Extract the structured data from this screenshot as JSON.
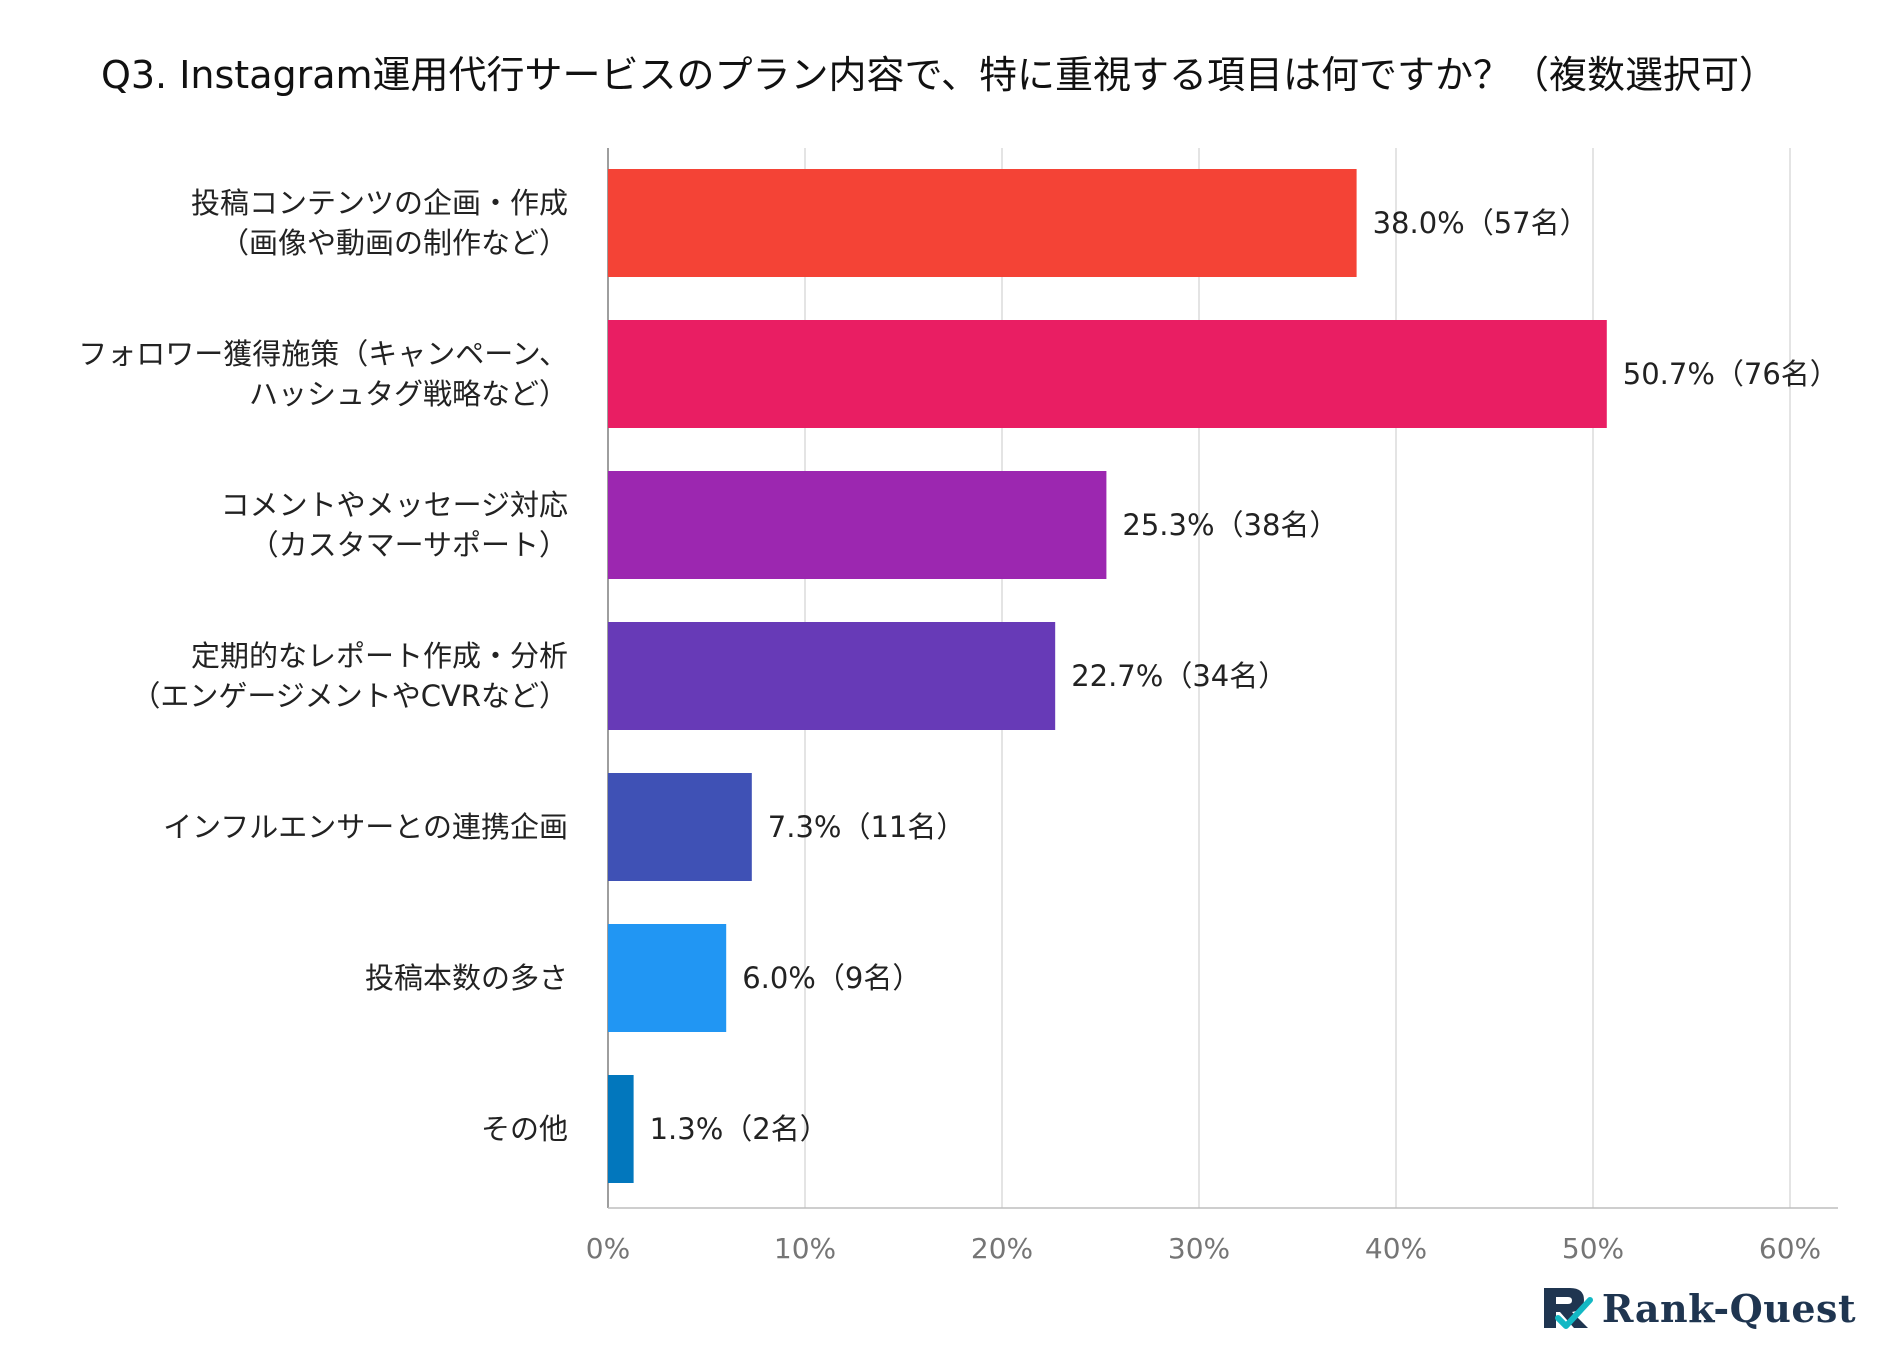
{
  "chart_data": {
    "type": "bar",
    "orientation": "horizontal",
    "title": "Q3. Instagram運用代行サービスのプラン内容で、特に重視する項目は何ですか？（複数選択可）",
    "categories": [
      [
        "投稿コンテンツの企画・作成",
        "（画像や動画の制作など）"
      ],
      [
        "フォロワー獲得施策（キャンペーン、",
        "ハッシュタグ戦略など）"
      ],
      [
        "コメントやメッセージ対応",
        "（カスタマーサポート）"
      ],
      [
        "定期的なレポート作成・分析",
        "（エンゲージメントやCVRなど）"
      ],
      [
        "インフルエンサーとの連携企画"
      ],
      [
        "投稿本数の多さ"
      ],
      [
        "その他"
      ]
    ],
    "values": [
      38.0,
      50.7,
      25.3,
      22.7,
      7.3,
      6.0,
      1.3
    ],
    "labels": [
      "38.0%（57名）",
      "50.7%（76名）",
      "25.3%（38名）",
      "22.7%（34名）",
      "7.3%（11名）",
      "6.0%（9名）",
      "1.3%（2名）"
    ],
    "colors": [
      "#f44336",
      "#e91e63",
      "#9c27b0",
      "#673ab7",
      "#3f51b5",
      "#2196f3",
      "#0277bd"
    ],
    "xlim": [
      0,
      60
    ],
    "xticks": [
      "0%",
      "10%",
      "20%",
      "30%",
      "40%",
      "50%",
      "60%"
    ],
    "grid": true,
    "xlabel": "",
    "ylabel": ""
  },
  "brand": {
    "name": "Rank-Quest",
    "colors": {
      "dark": "#1f3550",
      "accent": "#14b8c4"
    }
  }
}
